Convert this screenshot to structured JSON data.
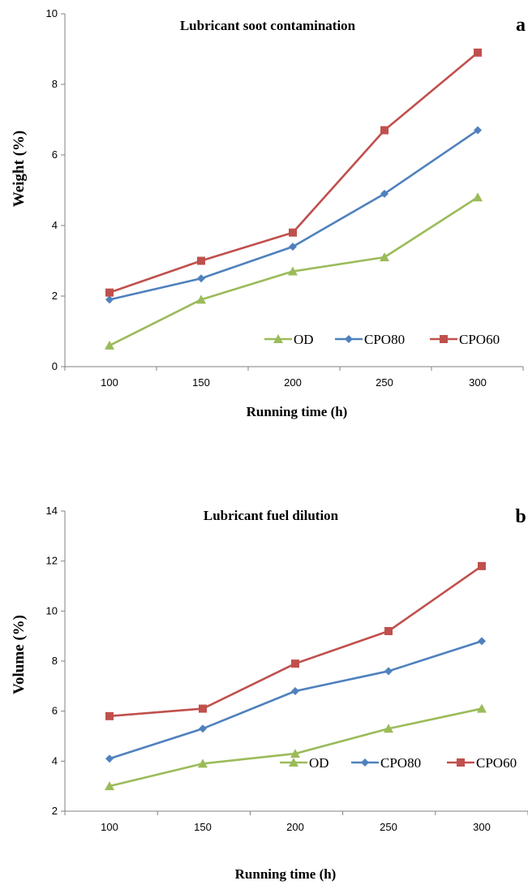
{
  "chart_data": [
    {
      "type": "line",
      "title": "Lubricant soot contamination",
      "panel_label": "a",
      "xlabel": "Running time (h)",
      "ylabel": "Weight  (%)",
      "x": [
        100,
        150,
        200,
        250,
        300
      ],
      "xticks": [
        "100",
        "150",
        "200",
        "250",
        "300"
      ],
      "ylim": [
        0,
        10
      ],
      "yticks": [
        "0",
        "2",
        "4",
        "6",
        "8",
        "10"
      ],
      "grid": false,
      "legend_position": "bottom-right",
      "series": [
        {
          "name": "OD",
          "marker": "triangle",
          "color": "#9bbb59",
          "values": [
            0.6,
            1.9,
            2.7,
            3.1,
            4.8
          ]
        },
        {
          "name": "CPO80",
          "marker": "diamond",
          "color": "#4f81bd",
          "values": [
            1.9,
            2.5,
            3.4,
            4.9,
            6.7
          ]
        },
        {
          "name": "CPO60",
          "marker": "square",
          "color": "#c0504d",
          "values": [
            2.1,
            3.0,
            3.8,
            6.7,
            8.9
          ]
        }
      ]
    },
    {
      "type": "line",
      "title": "Lubricant fuel dilution",
      "panel_label": "b",
      "xlabel": "Running time (h)",
      "ylabel": "Volume  (%)",
      "x": [
        100,
        150,
        200,
        250,
        300
      ],
      "xticks": [
        "100",
        "150",
        "200",
        "250",
        "300"
      ],
      "ylim": [
        2,
        14
      ],
      "yticks": [
        "2",
        "4",
        "6",
        "8",
        "10",
        "12",
        "14"
      ],
      "grid": false,
      "legend_position": "bottom-right",
      "series": [
        {
          "name": "OD",
          "marker": "triangle",
          "color": "#9bbb59",
          "values": [
            3.0,
            3.9,
            4.3,
            5.3,
            6.1
          ]
        },
        {
          "name": "CPO80",
          "marker": "diamond",
          "color": "#4f81bd",
          "values": [
            4.1,
            5.3,
            6.8,
            7.6,
            8.8
          ]
        },
        {
          "name": "CPO60",
          "marker": "square",
          "color": "#c0504d",
          "values": [
            5.8,
            6.1,
            7.9,
            9.2,
            11.8
          ]
        }
      ]
    }
  ]
}
